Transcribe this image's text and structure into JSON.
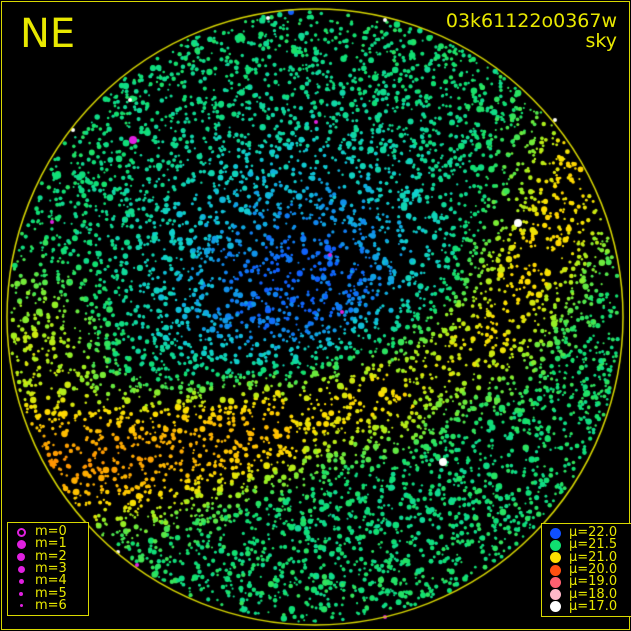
{
  "header": {
    "direction": "NE",
    "frame_id": "03k61122o0367w",
    "image_type": "sky"
  },
  "magnitude_legend": [
    {
      "label": "m=0",
      "size": 9,
      "hollow": true
    },
    {
      "label": "m=1",
      "size": 9
    },
    {
      "label": "m=2",
      "size": 8
    },
    {
      "label": "m=3",
      "size": 7
    },
    {
      "label": "m=4",
      "size": 5
    },
    {
      "label": "m=5",
      "size": 4
    },
    {
      "label": "m=6",
      "size": 3
    }
  ],
  "magnitude_color": "#e020e0",
  "brightness_legend": [
    {
      "label": "μ=22.0",
      "color": "#1050ff"
    },
    {
      "label": "μ=21.5",
      "color": "#10e070"
    },
    {
      "label": "μ=21.0",
      "color": "#ffe000"
    },
    {
      "label": "μ=20.0",
      "color": "#ff5010"
    },
    {
      "label": "μ=19.0",
      "color": "#ff6070"
    },
    {
      "label": "μ=18.0",
      "color": "#ffb8c8"
    },
    {
      "label": "μ=17.0",
      "color": "#ffffff"
    }
  ],
  "horizon_color": "#d8d800"
}
